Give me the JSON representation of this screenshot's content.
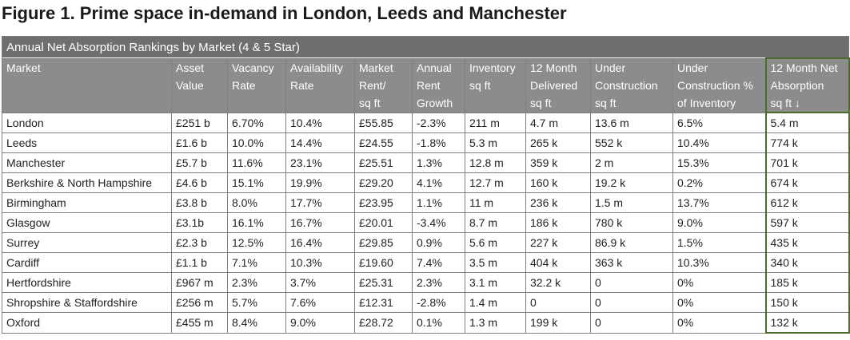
{
  "figure_title": "Figure 1. Prime space in-demand in London, Leeds and Manchester",
  "table_caption": "Annual Net Absorption Rankings by Market (4 & 5 Star)",
  "headers": [
    [
      "Market"
    ],
    [
      "Asset",
      "Value"
    ],
    [
      "Vacancy",
      "Rate"
    ],
    [
      "Availability",
      "Rate"
    ],
    [
      "Market",
      "Rent/",
      "sq ft"
    ],
    [
      "Annual",
      "Rent",
      "Growth"
    ],
    [
      "Inventory",
      "sq ft"
    ],
    [
      "12 Month",
      "Delivered",
      "sq ft"
    ],
    [
      "Under",
      "Construction",
      "sq ft"
    ],
    [
      "Under",
      "Construction %",
      "of Inventory"
    ],
    [
      "12 Month Net",
      "Absorption",
      "sq ft ↓"
    ]
  ],
  "rows": [
    [
      "London",
      "£251 b",
      "6.70%",
      "10.4%",
      "£55.85",
      "-2.3%",
      "211 m",
      "4.7 m",
      "13.6 m",
      "6.5%",
      "5.4 m"
    ],
    [
      "Leeds",
      "£1.6 b",
      "10.0%",
      "14.4%",
      "£24.55",
      "-1.8%",
      "5.3 m",
      "265 k",
      "552 k",
      "10.4%",
      "774 k"
    ],
    [
      "Manchester",
      "£5.7 b",
      "11.6%",
      "23.1%",
      "£25.51",
      "1.3%",
      "12.8 m",
      "359 k",
      "2 m",
      "15.3%",
      "701 k"
    ],
    [
      "Berkshire & North Hampshire",
      "£4.6 b",
      "15.1%",
      "19.9%",
      "£29.20",
      "4.1%",
      "12.7 m",
      "160 k",
      "19.2 k",
      "0.2%",
      "674 k"
    ],
    [
      "Birmingham",
      "£3.8 b",
      "8.0%",
      "17.7%",
      "£23.95",
      "1.1%",
      "11 m",
      "236 k",
      "1.5 m",
      "13.7%",
      "612 k"
    ],
    [
      "Glasgow",
      "£3.1b",
      "16.1%",
      "16.7%",
      "£20.01",
      "-3.4%",
      "8.7 m",
      "186 k",
      "780 k",
      "9.0%",
      "597 k"
    ],
    [
      "Surrey",
      "£2.3 b",
      "12.5%",
      "16.4%",
      "£29.85",
      "0.9%",
      "5.6 m",
      "227 k",
      "86.9 k",
      "1.5%",
      "435 k"
    ],
    [
      "Cardiff",
      "£1.1 b",
      "7.1%",
      "10.3%",
      "£19.60",
      "7.4%",
      "3.5 m",
      "404 k",
      "363 k",
      "10.3%",
      "340 k"
    ],
    [
      "Hertfordshire",
      "£967 m",
      "2.3%",
      "3.7%",
      "£25.31",
      "2.3%",
      "3.1 m",
      "32.2 k",
      "0",
      "0%",
      "185 k"
    ],
    [
      "Shropshire & Staffordshire",
      "£256 m",
      "5.7%",
      "7.6%",
      "£12.31",
      "-2.8%",
      "1.4 m",
      "0",
      "0",
      "0%",
      "150 k"
    ],
    [
      "Oxford",
      "£455 m",
      "8.4%",
      "9.0%",
      "£28.72",
      "0.1%",
      "1.3 m",
      "199 k",
      "0",
      "0%",
      "132 k"
    ]
  ],
  "colors": {
    "caption_bg": "#6f6f6f",
    "header_bg": "#8c8c8c",
    "highlight_border": "#4a6b2a"
  }
}
